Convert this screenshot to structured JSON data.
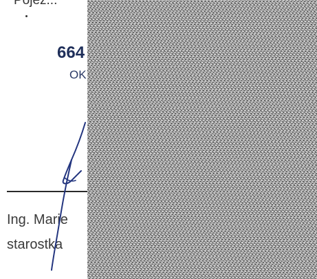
{
  "document": {
    "top_fragment": "Pojez...",
    "stamp": {
      "number_fragment": "664",
      "line2_fragment": "OK"
    },
    "signatory": {
      "name_fragment": "Ing. Marie",
      "title_fragment": "starostka"
    }
  },
  "colors": {
    "ink_blue": "#1f2f5a",
    "signature_blue": "#23357f",
    "text_gray": "#3a3a3a"
  },
  "redaction": {
    "style": "random-noise"
  }
}
